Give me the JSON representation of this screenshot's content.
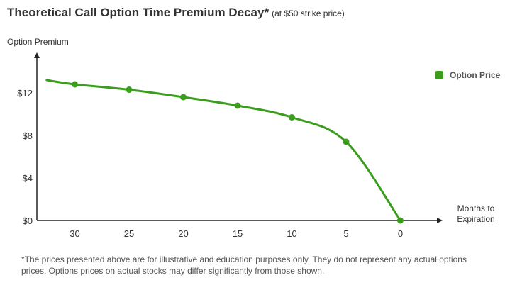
{
  "title": "Theoretical Call Option Time Premium Decay*",
  "subtitle": "(at $50 strike price)",
  "footnote": "*The prices presented above are for illustrative and education purposes only. They do not represent any actual options prices. Options prices on actual stocks may differ significantly from those shown.",
  "colors": {
    "series": "#3a9e1c",
    "axis": "#222222"
  },
  "chart_data": {
    "type": "line",
    "ylabel": "Option Premium",
    "xlabel_lines": [
      "Months to",
      "Expiration"
    ],
    "x_reversed": true,
    "xlim": [
      33.5,
      -3.5
    ],
    "ylim": [
      0,
      15
    ],
    "x_ticks": [
      30,
      25,
      20,
      15,
      10,
      5,
      0
    ],
    "y_ticks": [
      {
        "value": 0,
        "label": "$0"
      },
      {
        "value": 4,
        "label": "$4"
      },
      {
        "value": 8,
        "label": "$8"
      },
      {
        "value": 12,
        "label": "$12"
      }
    ],
    "legend": "top-right",
    "series": [
      {
        "name": "Option Price",
        "x": [
          30,
          25,
          20,
          15,
          10,
          5,
          0
        ],
        "y": [
          12.8,
          12.3,
          11.6,
          10.8,
          9.7,
          7.4,
          0
        ]
      }
    ],
    "curve_start": {
      "x": 32.6,
      "y": 13.2
    }
  }
}
